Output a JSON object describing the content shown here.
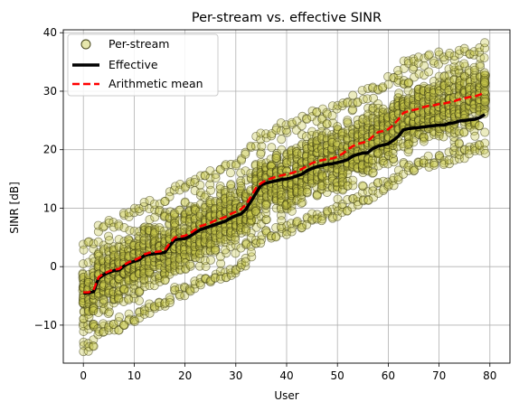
{
  "chart_data": {
    "type": "scatter",
    "title": "Per-stream vs. effective SINR",
    "xlabel": "User",
    "ylabel": "SINR [dB]",
    "xlim": [
      -3.95,
      83.95
    ],
    "ylim": [
      -16.5,
      40.5
    ],
    "xticks": [
      0,
      10,
      20,
      30,
      40,
      50,
      60,
      70,
      80
    ],
    "yticks": [
      -10,
      0,
      10,
      20,
      30,
      40
    ],
    "grid": true,
    "legend_position": "upper-left",
    "colors": {
      "scatter_fill": "#c9c94a",
      "scatter_edge": "#3a3a10",
      "effective": "#000000",
      "mean": "#ff0000"
    },
    "users": [
      0,
      79
    ],
    "per_stream_spread_db": [
      -9,
      8
    ],
    "series": [
      {
        "name": "Per-stream",
        "kind": "scatter",
        "note_range": "per-user vertical clusters of stream SINR values around the user mean"
      },
      {
        "name": "Effective",
        "kind": "line",
        "x": [
          0,
          1,
          2,
          3,
          4,
          5,
          6,
          7,
          8,
          9,
          10,
          11,
          12,
          13,
          14,
          15,
          16,
          17,
          18,
          19,
          20,
          21,
          22,
          23,
          24,
          25,
          26,
          27,
          28,
          29,
          30,
          31,
          32,
          33,
          34,
          35,
          36,
          37,
          38,
          39,
          40,
          41,
          42,
          43,
          44,
          45,
          46,
          47,
          48,
          49,
          50,
          51,
          52,
          53,
          54,
          55,
          56,
          57,
          58,
          59,
          60,
          61,
          62,
          63,
          64,
          65,
          66,
          67,
          68,
          69,
          70,
          71,
          72,
          73,
          74,
          75,
          76,
          77,
          78,
          79
        ],
        "y": [
          -4.5,
          -4.5,
          -4.3,
          -2.0,
          -1.4,
          -1.0,
          -0.7,
          -0.6,
          0.1,
          0.6,
          0.9,
          1.2,
          1.9,
          2.1,
          2.2,
          2.3,
          2.4,
          3.6,
          4.6,
          4.7,
          4.8,
          5.2,
          5.8,
          6.3,
          6.6,
          6.9,
          7.2,
          7.5,
          7.8,
          8.3,
          8.7,
          9.0,
          9.8,
          11.2,
          12.6,
          14.0,
          14.3,
          14.5,
          14.7,
          14.9,
          15.0,
          15.2,
          15.5,
          15.8,
          16.4,
          16.8,
          17.1,
          17.3,
          17.5,
          17.6,
          17.8,
          18.0,
          18.3,
          18.9,
          19.2,
          19.4,
          19.5,
          20.2,
          20.6,
          20.8,
          21.0,
          21.6,
          22.3,
          23.4,
          23.6,
          23.7,
          23.8,
          23.9,
          24.0,
          24.1,
          24.2,
          24.2,
          24.5,
          24.6,
          24.9,
          25.0,
          25.1,
          25.2,
          25.5,
          26.0
        ]
      },
      {
        "name": "Arithmetic mean",
        "kind": "line",
        "x": [
          0,
          1,
          2,
          3,
          4,
          5,
          6,
          7,
          8,
          9,
          10,
          11,
          12,
          13,
          14,
          15,
          16,
          17,
          18,
          19,
          20,
          21,
          22,
          23,
          24,
          25,
          26,
          27,
          28,
          29,
          30,
          31,
          32,
          33,
          34,
          35,
          36,
          37,
          38,
          39,
          40,
          41,
          42,
          43,
          44,
          45,
          46,
          47,
          48,
          49,
          50,
          51,
          52,
          53,
          54,
          55,
          56,
          57,
          58,
          59,
          60,
          61,
          62,
          63,
          64,
          65,
          66,
          67,
          68,
          69,
          70,
          71,
          72,
          73,
          74,
          75,
          76,
          77,
          78,
          79
        ],
        "y": [
          -4.4,
          -4.4,
          -4.0,
          -1.8,
          -1.2,
          -0.8,
          -0.5,
          -0.4,
          0.3,
          0.8,
          1.1,
          1.5,
          2.1,
          2.4,
          2.5,
          2.6,
          2.8,
          4.0,
          5.0,
          5.1,
          5.3,
          5.7,
          6.3,
          6.9,
          7.2,
          7.5,
          7.9,
          8.2,
          8.5,
          9.0,
          9.4,
          9.8,
          10.6,
          12.0,
          13.5,
          14.3,
          14.8,
          15.1,
          15.4,
          15.6,
          15.8,
          16.0,
          16.3,
          16.7,
          17.2,
          17.7,
          18.0,
          18.2,
          18.4,
          18.5,
          18.8,
          19.3,
          20.0,
          20.6,
          21.0,
          21.2,
          21.5,
          22.3,
          23.0,
          23.2,
          23.5,
          24.2,
          25.2,
          26.3,
          26.6,
          26.8,
          27.0,
          27.3,
          27.5,
          27.6,
          27.8,
          27.9,
          28.1,
          28.3,
          28.6,
          28.8,
          29.0,
          29.1,
          29.4,
          29.8
        ]
      }
    ]
  }
}
